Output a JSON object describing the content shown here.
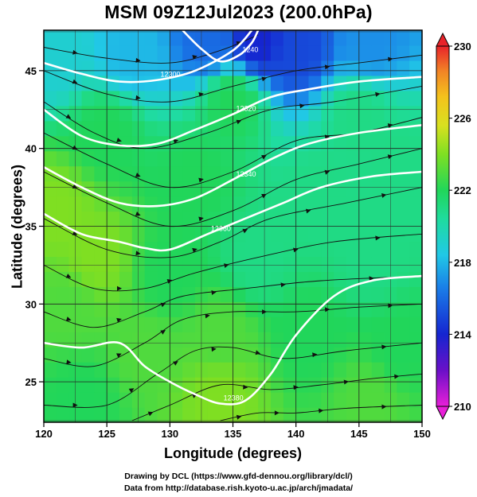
{
  "title": "MSM 09Z12Jul2023 (200.0hPa)",
  "credits": {
    "line1": "Drawing by DCL (https://www.gfd-dennou.org/library/dcl/)",
    "line2": "Data from http://database.rish.kyoto-u.ac.jp/arch/jmadata/"
  },
  "chart_data": {
    "type": "heatmap",
    "title": "MSM 09Z12Jul2023 (200.0hPa)",
    "xlabel": "Longitude (degrees)",
    "ylabel": "Latitude  (degrees)",
    "xlim": [
      120,
      150
    ],
    "ylim": [
      22.4,
      47.6
    ],
    "x_ticks": [
      120,
      125,
      130,
      135,
      140,
      145,
      150
    ],
    "y_ticks": [
      25,
      30,
      35,
      40,
      45
    ],
    "grid": true,
    "colorbar": {
      "min": 210,
      "max": 230,
      "ticks": [
        210,
        214,
        218,
        222,
        226,
        230
      ],
      "extend": "both"
    },
    "field_points": [
      {
        "lon": 137,
        "lat": 47,
        "value": 214
      },
      {
        "lon": 133,
        "lat": 47,
        "value": 216
      },
      {
        "lon": 140,
        "lat": 46.5,
        "value": 215
      },
      {
        "lon": 146,
        "lat": 47,
        "value": 217
      },
      {
        "lon": 127,
        "lat": 46,
        "value": 218
      },
      {
        "lon": 121,
        "lat": 46,
        "value": 219
      },
      {
        "lon": 135,
        "lat": 43,
        "value": 222
      },
      {
        "lon": 145,
        "lat": 42,
        "value": 221
      },
      {
        "lon": 125,
        "lat": 41,
        "value": 222
      },
      {
        "lon": 132,
        "lat": 38,
        "value": 222
      },
      {
        "lon": 142,
        "lat": 37,
        "value": 221
      },
      {
        "lon": 148,
        "lat": 39,
        "value": 221
      },
      {
        "lon": 121,
        "lat": 36,
        "value": 224
      },
      {
        "lon": 124,
        "lat": 33,
        "value": 224
      },
      {
        "lon": 122,
        "lat": 30,
        "value": 223
      },
      {
        "lon": 130,
        "lat": 32,
        "value": 222
      },
      {
        "lon": 137,
        "lat": 33,
        "value": 221
      },
      {
        "lon": 146,
        "lat": 33,
        "value": 221
      },
      {
        "lon": 134,
        "lat": 28,
        "value": 223
      },
      {
        "lon": 128,
        "lat": 27,
        "value": 223
      },
      {
        "lon": 141,
        "lat": 28,
        "value": 222
      },
      {
        "lon": 148,
        "lat": 27,
        "value": 222
      },
      {
        "lon": 134,
        "lat": 24,
        "value": 224
      },
      {
        "lon": 123,
        "lat": 24,
        "value": 222
      },
      {
        "lon": 146,
        "lat": 24,
        "value": 223
      }
    ],
    "contour_labels": [
      "1240",
      "12300",
      "12320",
      "12340",
      "12360",
      "12380"
    ],
    "streamlines": [
      {
        "points": [
          [
            120,
            46.5
          ],
          [
            125,
            45.8
          ],
          [
            130,
            45.5
          ],
          [
            134,
            46.3
          ],
          [
            137,
            47.3
          ]
        ]
      },
      {
        "points": [
          [
            120,
            45
          ],
          [
            125,
            43.5
          ],
          [
            130,
            43
          ],
          [
            135,
            44
          ],
          [
            140,
            45
          ],
          [
            145,
            45.5
          ],
          [
            150,
            46
          ]
        ]
      },
      {
        "points": [
          [
            120,
            43
          ],
          [
            124,
            41
          ],
          [
            128,
            40
          ],
          [
            133,
            41
          ],
          [
            138,
            42.5
          ],
          [
            143,
            43
          ],
          [
            150,
            44
          ]
        ]
      },
      {
        "points": [
          [
            120,
            41
          ],
          [
            125,
            39
          ],
          [
            130,
            37.5
          ],
          [
            135,
            38.5
          ],
          [
            140,
            40.5
          ],
          [
            145,
            41
          ],
          [
            150,
            42
          ]
        ]
      },
      {
        "points": [
          [
            120,
            38.5
          ],
          [
            125,
            36.5
          ],
          [
            130,
            35
          ],
          [
            135,
            36
          ],
          [
            140,
            38
          ],
          [
            145,
            39
          ],
          [
            150,
            40
          ]
        ]
      },
      {
        "points": [
          [
            120,
            35.5
          ],
          [
            125,
            33.5
          ],
          [
            130,
            33
          ],
          [
            134,
            34
          ],
          [
            138,
            35.5
          ],
          [
            144,
            36.5
          ],
          [
            150,
            37.5
          ]
        ]
      },
      {
        "points": [
          [
            120,
            32.5
          ],
          [
            124,
            31
          ],
          [
            128,
            31
          ],
          [
            132,
            32
          ],
          [
            137,
            33
          ],
          [
            143,
            34
          ],
          [
            150,
            34.5
          ]
        ]
      },
      {
        "points": [
          [
            120,
            29.5
          ],
          [
            124,
            28.5
          ],
          [
            128,
            29.5
          ],
          [
            131,
            30.5
          ],
          [
            136,
            31
          ],
          [
            142,
            31.5
          ],
          [
            150,
            31.8
          ]
        ]
      },
      {
        "points": [
          [
            120,
            26.5
          ],
          [
            124,
            26
          ],
          [
            128,
            27.5
          ],
          [
            131,
            29
          ],
          [
            135,
            29.5
          ],
          [
            140,
            29.5
          ],
          [
            145,
            29.8
          ],
          [
            150,
            30
          ]
        ]
      },
      {
        "points": [
          [
            120,
            23.5
          ],
          [
            125,
            23.5
          ],
          [
            129,
            25.5
          ],
          [
            132,
            27
          ],
          [
            135,
            27.2
          ],
          [
            139,
            26.5
          ],
          [
            144,
            27
          ],
          [
            150,
            27.5
          ]
        ]
      },
      {
        "points": [
          [
            127,
            22.5
          ],
          [
            130,
            23.5
          ],
          [
            134,
            24.8
          ],
          [
            138,
            24.5
          ],
          [
            142,
            24.8
          ],
          [
            146,
            25.2
          ],
          [
            150,
            25.5
          ]
        ]
      },
      {
        "points": [
          [
            134,
            22.5
          ],
          [
            137,
            23
          ],
          [
            140,
            23
          ],
          [
            144,
            23.3
          ],
          [
            150,
            23.5
          ]
        ]
      }
    ],
    "contours": [
      {
        "label": "12380",
        "points": [
          [
            120,
            27.5
          ],
          [
            123,
            27.2
          ],
          [
            126,
            27.5
          ],
          [
            128,
            26
          ],
          [
            130,
            25
          ],
          [
            132,
            24.2
          ],
          [
            134,
            23.6
          ],
          [
            136,
            23.8
          ],
          [
            138,
            25.5
          ],
          [
            140,
            28
          ],
          [
            143,
            30.5
          ],
          [
            146,
            31.5
          ],
          [
            150,
            31.8
          ]
        ]
      },
      {
        "label": "12360",
        "points": [
          [
            120,
            35.8
          ],
          [
            123,
            34.5
          ],
          [
            126,
            34
          ],
          [
            128,
            33.6
          ],
          [
            130,
            33.5
          ],
          [
            133,
            34.5
          ],
          [
            136,
            35.5
          ],
          [
            139,
            36.5
          ],
          [
            142,
            37.5
          ],
          [
            146,
            38.2
          ],
          [
            150,
            38.5
          ]
        ]
      },
      {
        "label": "12340",
        "points": [
          [
            120,
            38.8
          ],
          [
            123,
            37.5
          ],
          [
            126,
            36.5
          ],
          [
            129,
            36.3
          ],
          [
            132,
            36.8
          ],
          [
            135,
            38
          ],
          [
            138,
            39.3
          ],
          [
            141,
            40.3
          ],
          [
            145,
            41
          ],
          [
            150,
            41.5
          ]
        ]
      },
      {
        "label": "12320",
        "points": [
          [
            120,
            42.5
          ],
          [
            123,
            40.8
          ],
          [
            126,
            40.2
          ],
          [
            129,
            40.3
          ],
          [
            132,
            41.2
          ],
          [
            135,
            42.2
          ],
          [
            138,
            43.3
          ],
          [
            141,
            43.8
          ],
          [
            145,
            44.3
          ],
          [
            150,
            44.6
          ]
        ]
      },
      {
        "label": "12300",
        "points": [
          [
            120,
            45.5
          ],
          [
            123,
            44.8
          ],
          [
            126,
            44.3
          ],
          [
            129,
            44.4
          ],
          [
            132,
            45
          ],
          [
            135,
            46.3
          ],
          [
            136.5,
            47.6
          ]
        ]
      },
      {
        "label": "1240",
        "points": [
          [
            131,
            47.6
          ],
          [
            132.5,
            46.4
          ],
          [
            134,
            45.6
          ],
          [
            135.5,
            46
          ],
          [
            136.5,
            46.8
          ],
          [
            137,
            47.6
          ]
        ]
      }
    ]
  }
}
